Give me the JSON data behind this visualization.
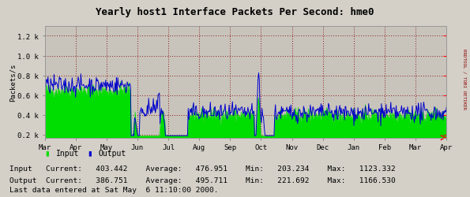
{
  "title": "Yearly host1 Interface Packets Per Second: hme0",
  "ylabel": "Packets/s",
  "bg_color": "#d4d0c8",
  "plot_bg_color": "#c8c4bc",
  "grid_color": "#8b1a1a",
  "input_color": "#00dd00",
  "output_color": "#0000cc",
  "yticks": [
    0.2,
    0.4,
    0.6,
    0.8,
    1.0,
    1.2
  ],
  "ytick_labels": [
    "0.2 k",
    "0.4 k",
    "0.6 k",
    "0.8 k",
    "1.0 k",
    "1.2 k"
  ],
  "ylim": [
    0.17,
    1.3
  ],
  "x_month_labels": [
    "Mar",
    "Apr",
    "May",
    "Jun",
    "Jul",
    "Aug",
    "Sep",
    "Oct",
    "Nov",
    "Dec",
    "Jan",
    "Feb",
    "Mar",
    "Apr"
  ],
  "legend_input": "Input",
  "legend_output": "Output",
  "stat_input": "Input   Current:   403.442    Average:   476.951    Min:   203.234    Max:   1123.332",
  "stat_output": "Output  Current:   386.751    Average:   495.711    Min:   221.692    Max:   1166.530",
  "last_data_text": "Last data entered at Sat May  6 11:10:00 2000.",
  "right_label": "RRDTOOL / TOBI OETIKER",
  "n_points": 600
}
